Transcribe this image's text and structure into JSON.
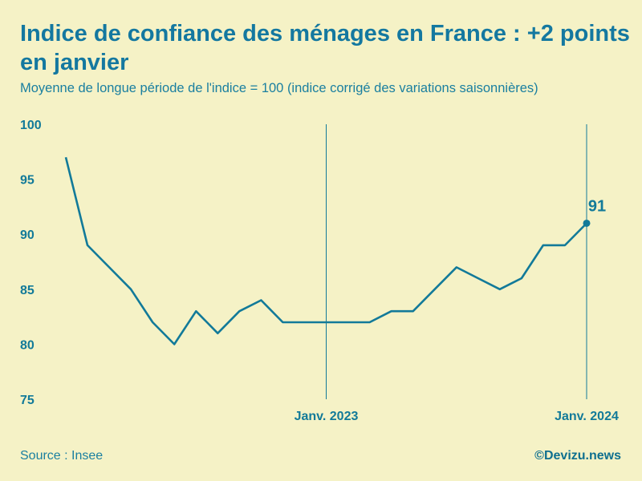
{
  "header": {
    "title": "Indice de confiance des ménages en France : +2 points en janvier",
    "subtitle": "Moyenne de longue période de l'indice = 100 (indice corrigé des variations saisonnières)"
  },
  "footer": {
    "source": "Source : Insee",
    "brand": "©Devizu.news"
  },
  "colors": {
    "background": "#f5f2c6",
    "line": "#127a99",
    "text": "#127a99"
  },
  "chart_data": {
    "type": "line",
    "title": "Indice de confiance des ménages en France : +2 points en janvier",
    "subtitle": "Moyenne de longue période de l'indice = 100 (indice corrigé des variations saisonnières)",
    "x": [
      "2022-01",
      "2022-02",
      "2022-03",
      "2022-04",
      "2022-05",
      "2022-06",
      "2022-07",
      "2022-08",
      "2022-09",
      "2022-10",
      "2022-11",
      "2022-12",
      "2023-01",
      "2023-02",
      "2023-03",
      "2023-04",
      "2023-05",
      "2023-06",
      "2023-07",
      "2023-08",
      "2023-09",
      "2023-10",
      "2023-11",
      "2023-12",
      "2024-01"
    ],
    "series": [
      {
        "values": [
          97,
          89,
          87,
          85,
          82,
          80,
          83,
          81,
          83,
          84,
          82,
          82,
          82,
          82,
          82,
          83,
          83,
          85,
          87,
          86,
          85,
          86,
          89,
          89,
          91
        ]
      }
    ],
    "ylim": [
      75,
      100
    ],
    "yticks": [
      "100",
      "95",
      "90",
      "85",
      "80",
      "75"
    ],
    "xtick_labels": [
      {
        "label": "Janv. 2023",
        "index": 12
      },
      {
        "label": "Janv. 2024",
        "index": 24
      }
    ],
    "annotation": {
      "label": "91",
      "index": 24
    },
    "grid": false,
    "legend": "none"
  }
}
